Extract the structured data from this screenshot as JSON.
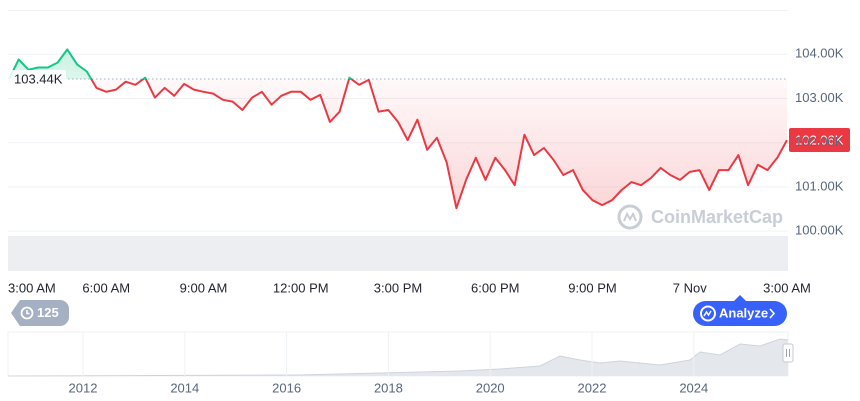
{
  "chart_data": {
    "type": "line",
    "categories": [
      "3:00 AM",
      null,
      null,
      null,
      null,
      null,
      null,
      null,
      null,
      null,
      "6:00 AM",
      null,
      null,
      null,
      null,
      null,
      null,
      null,
      null,
      null,
      "9:00 AM",
      null,
      null,
      null,
      null,
      null,
      null,
      null,
      null,
      null,
      "12:00 PM",
      null,
      null,
      null,
      null,
      null,
      null,
      null,
      null,
      null,
      "3:00 PM",
      null,
      null,
      null,
      null,
      null,
      null,
      null,
      null,
      null,
      "6:00 PM",
      null,
      null,
      null,
      null,
      null,
      null,
      null,
      null,
      null,
      "9:00 PM",
      null,
      null,
      null,
      null,
      null,
      null,
      null,
      null,
      null,
      "7 Nov",
      null,
      null,
      null,
      null,
      null,
      null,
      null,
      null,
      null,
      "3:00 AM"
    ],
    "values": [
      103440,
      103880,
      103650,
      103700,
      103700,
      103810,
      104110,
      103770,
      103610,
      103240,
      103150,
      103200,
      103380,
      103310,
      103470,
      103020,
      103240,
      103060,
      103330,
      103200,
      103150,
      103110,
      102970,
      102930,
      102740,
      103020,
      103150,
      102860,
      103060,
      103150,
      103150,
      102970,
      103080,
      102470,
      102700,
      103470,
      103310,
      103420,
      102700,
      102740,
      102470,
      102060,
      102520,
      101840,
      102110,
      101560,
      100520,
      101160,
      101660,
      101160,
      101660,
      101380,
      101040,
      102180,
      101720,
      101880,
      101610,
      101270,
      101380,
      100930,
      100700,
      100590,
      100700,
      100930,
      101110,
      101040,
      101200,
      101430,
      101270,
      101160,
      101340,
      101380,
      100930,
      101380,
      101380,
      101720,
      101040,
      101500,
      101380,
      101660,
      102060
    ],
    "color_up": "#16c784",
    "color_down": "#ea3943",
    "baseline": {
      "value": 103440,
      "label": "103.44K"
    },
    "current_price": {
      "value": 102060,
      "label": "102.06K"
    },
    "ylim": [
      99100,
      105000
    ],
    "yticks": [
      {
        "value": 100000,
        "label": "100.00K"
      },
      {
        "value": 101000,
        "label": "101.00K"
      },
      {
        "value": 102000,
        "label": "102.00K"
      },
      {
        "value": 103000,
        "label": "103.00K"
      },
      {
        "value": 104000,
        "label": "104.00K"
      }
    ],
    "grid": true
  },
  "watermark": "CoinMarketCap",
  "controls": {
    "history_count": "125",
    "analyze": "Analyze"
  },
  "navigator": {
    "years": [
      "2012",
      "2014",
      "2016",
      "2018",
      "2020",
      "2022",
      "2024"
    ]
  }
}
